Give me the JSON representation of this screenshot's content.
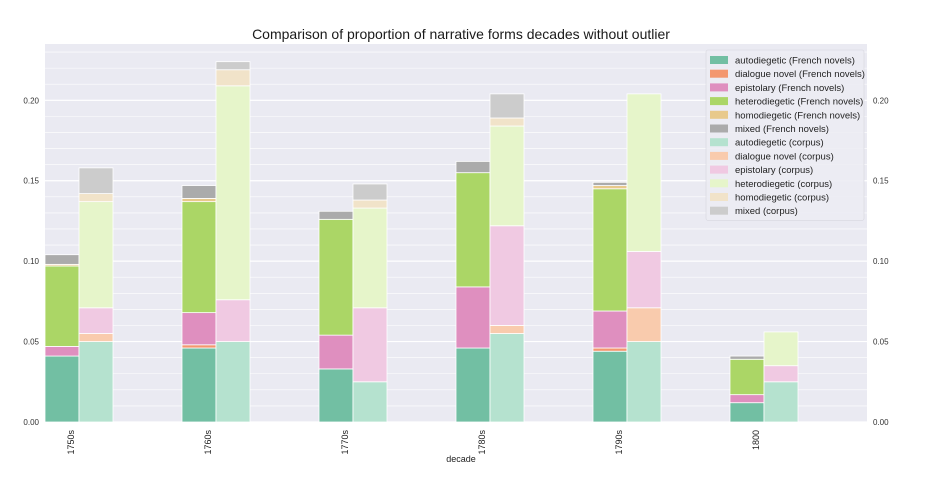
{
  "chart_data": {
    "type": "bar",
    "stacked": true,
    "title": "Comparison of proportion of narrative forms decades without outlier",
    "xlabel": "decade",
    "ylabel": "",
    "categories": [
      "1750s",
      "1760s",
      "1770s",
      "1780s",
      "1790s",
      "1800"
    ],
    "ylim": [
      0,
      0.235
    ],
    "yticks": [
      0.0,
      0.05,
      0.1,
      0.15,
      0.2
    ],
    "ytick_labels": [
      "0.00",
      "0.05",
      "0.10",
      "0.15",
      "0.20"
    ],
    "grid": true,
    "legend_position": "top-right",
    "groups": [
      {
        "name": "French novels",
        "series": [
          {
            "name": "autodiegetic (French novels)",
            "color": "#72bfa3",
            "values": [
              0.041,
              0.046,
              0.033,
              0.046,
              0.044,
              0.012
            ]
          },
          {
            "name": "dialogue novel (French novels)",
            "color": "#f3976f",
            "values": [
              0.0,
              0.002,
              0.0,
              0.0,
              0.002,
              0.0
            ]
          },
          {
            "name": "epistolary (French novels)",
            "color": "#df8fbf",
            "values": [
              0.006,
              0.02,
              0.021,
              0.038,
              0.023,
              0.005
            ]
          },
          {
            "name": "heterodiegetic (French novels)",
            "color": "#abd666",
            "values": [
              0.05,
              0.069,
              0.072,
              0.071,
              0.076,
              0.022
            ]
          },
          {
            "name": "homodiegetic (French novels)",
            "color": "#e8c98b",
            "values": [
              0.001,
              0.002,
              0.0,
              0.0,
              0.002,
              0.0
            ]
          },
          {
            "name": "mixed (French novels)",
            "color": "#ababab",
            "values": [
              0.006,
              0.008,
              0.005,
              0.007,
              0.002,
              0.002
            ]
          }
        ]
      },
      {
        "name": "corpus",
        "series": [
          {
            "name": "autodiegetic (corpus)",
            "color": "#b5e2cf",
            "values": [
              0.05,
              0.05,
              0.025,
              0.055,
              0.05,
              0.025
            ]
          },
          {
            "name": "dialogue novel (corpus)",
            "color": "#f9cbad",
            "values": [
              0.005,
              0.0,
              0.0,
              0.005,
              0.021,
              0.0
            ]
          },
          {
            "name": "epistolary (corpus)",
            "color": "#f0c9e2",
            "values": [
              0.016,
              0.026,
              0.046,
              0.062,
              0.035,
              0.01
            ]
          },
          {
            "name": "heterodiegetic (corpus)",
            "color": "#e6f5ca",
            "values": [
              0.066,
              0.133,
              0.062,
              0.062,
              0.098,
              0.021
            ]
          },
          {
            "name": "homodiegetic (corpus)",
            "color": "#f1e3c9",
            "values": [
              0.005,
              0.01,
              0.005,
              0.005,
              0.0,
              0.0
            ]
          },
          {
            "name": "mixed (corpus)",
            "color": "#cccccc",
            "values": [
              0.016,
              0.005,
              0.01,
              0.015,
              0.0,
              0.0
            ]
          }
        ]
      }
    ]
  }
}
